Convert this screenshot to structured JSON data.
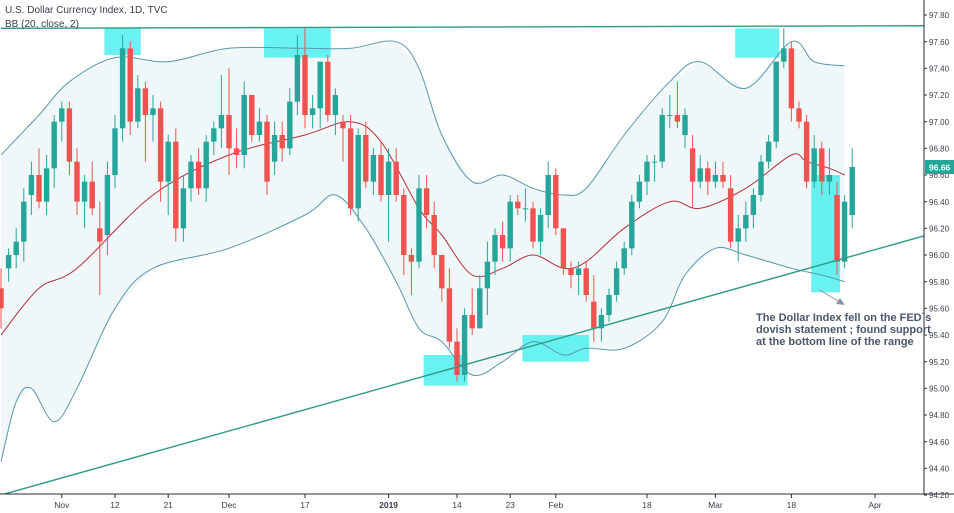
{
  "header": {
    "line1": "U.S. Dollar Currency Index, 1D, TVC",
    "line2": "BB (20, close, 2)"
  },
  "annotation": {
    "text": "The Dollar Index fell on the FED`s dovish statement ; found support at the bottom line of the range"
  },
  "colors": {
    "up": "#26a69a",
    "down": "#ef5350",
    "band": "#5b97ad",
    "basis": "#b2313b",
    "trendline": "#2e9a84",
    "highlight": "#4ef0ee",
    "price_label": "#26a69a"
  },
  "chart_data": {
    "type": "candlestick",
    "symbol": "U.S. Dollar Currency Index",
    "interval": "1D",
    "source": "TVC",
    "indicator": "BB (20, close, 2)",
    "last_price": "96.66",
    "ylim": [
      94.2,
      97.9
    ],
    "y_ticks": [
      "94.20",
      "94.40",
      "94.60",
      "94.80",
      "95.00",
      "95.20",
      "95.40",
      "95.60",
      "95.80",
      "96.00",
      "96.20",
      "96.40",
      "96.60",
      "96.80",
      "97.00",
      "97.20",
      "97.40",
      "97.60",
      "97.80"
    ],
    "x_ticks": [
      {
        "label": "Nov",
        "index": 8,
        "bold": false
      },
      {
        "label": "12",
        "index": 15,
        "bold": false
      },
      {
        "label": "21",
        "index": 22,
        "bold": false
      },
      {
        "label": "Dec",
        "index": 30,
        "bold": false
      },
      {
        "label": "17",
        "index": 40,
        "bold": false
      },
      {
        "label": "2019",
        "index": 51,
        "bold": true
      },
      {
        "label": "14",
        "index": 60,
        "bold": false
      },
      {
        "label": "23",
        "index": 67,
        "bold": false
      },
      {
        "label": "Feb",
        "index": 73,
        "bold": false
      },
      {
        "label": "18",
        "index": 85,
        "bold": false
      },
      {
        "label": "Mar",
        "index": 94,
        "bold": false
      },
      {
        "label": "18",
        "index": 104,
        "bold": false
      },
      {
        "label": "Apr",
        "index": 115,
        "bold": false
      }
    ],
    "candles": [
      {
        "o": 95.75,
        "h": 95.9,
        "l": 95.45,
        "c": 95.6
      },
      {
        "o": 95.9,
        "h": 96.05,
        "l": 95.8,
        "c": 96.0
      },
      {
        "o": 96.0,
        "h": 96.2,
        "l": 95.9,
        "c": 96.1
      },
      {
        "o": 96.1,
        "h": 96.5,
        "l": 95.95,
        "c": 96.4
      },
      {
        "o": 96.45,
        "h": 96.7,
        "l": 96.3,
        "c": 96.6
      },
      {
        "o": 96.6,
        "h": 96.8,
        "l": 96.35,
        "c": 96.4
      },
      {
        "o": 96.4,
        "h": 96.75,
        "l": 96.3,
        "c": 96.65
      },
      {
        "o": 96.65,
        "h": 97.05,
        "l": 96.5,
        "c": 97.0
      },
      {
        "o": 97.0,
        "h": 97.15,
        "l": 96.85,
        "c": 97.1
      },
      {
        "o": 97.1,
        "h": 97.15,
        "l": 96.6,
        "c": 96.7
      },
      {
        "o": 96.7,
        "h": 96.8,
        "l": 96.3,
        "c": 96.4
      },
      {
        "o": 96.4,
        "h": 96.6,
        "l": 96.2,
        "c": 96.55
      },
      {
        "o": 96.55,
        "h": 96.7,
        "l": 96.3,
        "c": 96.35
      },
      {
        "o": 96.2,
        "h": 96.4,
        "l": 95.7,
        "c": 96.1
      },
      {
        "o": 96.15,
        "h": 96.7,
        "l": 96.0,
        "c": 96.6
      },
      {
        "o": 96.6,
        "h": 97.05,
        "l": 96.5,
        "c": 96.95
      },
      {
        "o": 96.95,
        "h": 97.65,
        "l": 96.85,
        "c": 97.55
      },
      {
        "o": 97.55,
        "h": 97.6,
        "l": 96.9,
        "c": 97.0
      },
      {
        "o": 97.0,
        "h": 97.35,
        "l": 96.95,
        "c": 97.25
      },
      {
        "o": 97.25,
        "h": 97.3,
        "l": 96.7,
        "c": 97.05
      },
      {
        "o": 97.05,
        "h": 97.2,
        "l": 96.85,
        "c": 97.1
      },
      {
        "o": 97.1,
        "h": 97.15,
        "l": 96.4,
        "c": 96.55
      },
      {
        "o": 96.55,
        "h": 96.9,
        "l": 96.3,
        "c": 96.85
      },
      {
        "o": 96.85,
        "h": 96.95,
        "l": 96.1,
        "c": 96.2
      },
      {
        "o": 96.2,
        "h": 96.6,
        "l": 96.1,
        "c": 96.5
      },
      {
        "o": 96.5,
        "h": 96.75,
        "l": 96.4,
        "c": 96.7
      },
      {
        "o": 96.7,
        "h": 96.8,
        "l": 96.45,
        "c": 96.5
      },
      {
        "o": 96.5,
        "h": 96.9,
        "l": 96.4,
        "c": 96.85
      },
      {
        "o": 96.85,
        "h": 97.0,
        "l": 96.75,
        "c": 96.95
      },
      {
        "o": 96.95,
        "h": 97.35,
        "l": 96.8,
        "c": 97.05
      },
      {
        "o": 97.05,
        "h": 97.4,
        "l": 96.6,
        "c": 96.8
      },
      {
        "o": 96.8,
        "h": 96.95,
        "l": 96.65,
        "c": 96.75
      },
      {
        "o": 96.75,
        "h": 97.3,
        "l": 96.65,
        "c": 97.2
      },
      {
        "o": 97.2,
        "h": 97.2,
        "l": 96.85,
        "c": 96.9
      },
      {
        "o": 96.9,
        "h": 97.1,
        "l": 96.85,
        "c": 97.0
      },
      {
        "o": 97.0,
        "h": 97.05,
        "l": 96.45,
        "c": 96.55
      },
      {
        "o": 96.7,
        "h": 97.0,
        "l": 96.6,
        "c": 96.9
      },
      {
        "o": 96.9,
        "h": 97.0,
        "l": 96.7,
        "c": 96.8
      },
      {
        "o": 96.8,
        "h": 97.25,
        "l": 96.75,
        "c": 97.15
      },
      {
        "o": 97.15,
        "h": 97.65,
        "l": 97.05,
        "c": 97.5
      },
      {
        "o": 97.5,
        "h": 97.7,
        "l": 96.95,
        "c": 97.05
      },
      {
        "o": 97.05,
        "h": 97.2,
        "l": 96.95,
        "c": 97.1
      },
      {
        "o": 97.1,
        "h": 97.45,
        "l": 96.95,
        "c": 97.45
      },
      {
        "o": 97.45,
        "h": 97.5,
        "l": 97.0,
        "c": 97.05
      },
      {
        "o": 97.05,
        "h": 97.25,
        "l": 96.9,
        "c": 97.2
      },
      {
        "o": 97.0,
        "h": 97.05,
        "l": 96.7,
        "c": 96.95
      },
      {
        "o": 96.95,
        "h": 97.05,
        "l": 96.3,
        "c": 96.35
      },
      {
        "o": 96.35,
        "h": 96.95,
        "l": 96.25,
        "c": 96.9
      },
      {
        "o": 96.9,
        "h": 97.0,
        "l": 96.5,
        "c": 96.55
      },
      {
        "o": 96.55,
        "h": 96.8,
        "l": 96.45,
        "c": 96.75
      },
      {
        "o": 96.75,
        "h": 96.85,
        "l": 96.4,
        "c": 96.45
      },
      {
        "o": 96.45,
        "h": 96.8,
        "l": 96.1,
        "c": 96.7
      },
      {
        "o": 96.7,
        "h": 96.8,
        "l": 96.4,
        "c": 96.45
      },
      {
        "o": 96.45,
        "h": 96.5,
        "l": 95.85,
        "c": 96.0
      },
      {
        "o": 96.0,
        "h": 96.05,
        "l": 95.7,
        "c": 95.95
      },
      {
        "o": 95.95,
        "h": 96.6,
        "l": 95.9,
        "c": 96.5
      },
      {
        "o": 96.5,
        "h": 96.6,
        "l": 96.2,
        "c": 96.3
      },
      {
        "o": 96.3,
        "h": 96.4,
        "l": 95.9,
        "c": 96.0
      },
      {
        "o": 96.0,
        "h": 96.0,
        "l": 95.65,
        "c": 95.75
      },
      {
        "o": 95.75,
        "h": 95.9,
        "l": 95.3,
        "c": 95.35
      },
      {
        "o": 95.35,
        "h": 95.45,
        "l": 95.05,
        "c": 95.1
      },
      {
        "o": 95.1,
        "h": 95.6,
        "l": 95.05,
        "c": 95.55
      },
      {
        "o": 95.55,
        "h": 95.75,
        "l": 95.4,
        "c": 95.45
      },
      {
        "o": 95.45,
        "h": 95.85,
        "l": 95.45,
        "c": 95.75
      },
      {
        "o": 95.75,
        "h": 96.1,
        "l": 95.55,
        "c": 95.95
      },
      {
        "o": 95.95,
        "h": 96.2,
        "l": 95.85,
        "c": 96.15
      },
      {
        "o": 96.15,
        "h": 96.25,
        "l": 95.95,
        "c": 96.05
      },
      {
        "o": 96.05,
        "h": 96.45,
        "l": 95.95,
        "c": 96.4
      },
      {
        "o": 96.4,
        "h": 96.45,
        "l": 96.3,
        "c": 96.35
      },
      {
        "o": 96.35,
        "h": 96.5,
        "l": 96.25,
        "c": 96.35
      },
      {
        "o": 96.35,
        "h": 96.4,
        "l": 96.05,
        "c": 96.1
      },
      {
        "o": 96.1,
        "h": 96.35,
        "l": 96.0,
        "c": 96.3
      },
      {
        "o": 96.3,
        "h": 96.7,
        "l": 96.2,
        "c": 96.6
      },
      {
        "o": 96.6,
        "h": 96.65,
        "l": 96.15,
        "c": 96.2
      },
      {
        "o": 96.2,
        "h": 96.2,
        "l": 95.85,
        "c": 95.9
      },
      {
        "o": 95.9,
        "h": 95.95,
        "l": 95.75,
        "c": 95.85
      },
      {
        "o": 95.85,
        "h": 95.95,
        "l": 95.7,
        "c": 95.9
      },
      {
        "o": 95.9,
        "h": 95.95,
        "l": 95.65,
        "c": 95.7
      },
      {
        "o": 95.65,
        "h": 95.85,
        "l": 95.35,
        "c": 95.45
      },
      {
        "o": 95.45,
        "h": 95.6,
        "l": 95.35,
        "c": 95.55
      },
      {
        "o": 95.55,
        "h": 95.75,
        "l": 95.5,
        "c": 95.7
      },
      {
        "o": 95.7,
        "h": 95.95,
        "l": 95.65,
        "c": 95.9
      },
      {
        "o": 95.9,
        "h": 96.1,
        "l": 95.85,
        "c": 96.05
      },
      {
        "o": 96.05,
        "h": 96.45,
        "l": 96.0,
        "c": 96.4
      },
      {
        "o": 96.4,
        "h": 96.6,
        "l": 96.35,
        "c": 96.55
      },
      {
        "o": 96.55,
        "h": 96.75,
        "l": 96.45,
        "c": 96.7
      },
      {
        "o": 96.7,
        "h": 96.75,
        "l": 96.55,
        "c": 96.7
      },
      {
        "o": 96.7,
        "h": 97.1,
        "l": 96.65,
        "c": 97.05
      },
      {
        "o": 97.05,
        "h": 97.2,
        "l": 96.95,
        "c": 97.05
      },
      {
        "o": 97.05,
        "h": 97.3,
        "l": 96.95,
        "c": 97.0
      },
      {
        "o": 96.9,
        "h": 97.1,
        "l": 96.8,
        "c": 97.05
      },
      {
        "o": 96.8,
        "h": 96.9,
        "l": 96.35,
        "c": 96.55
      },
      {
        "o": 96.55,
        "h": 96.75,
        "l": 96.5,
        "c": 96.65
      },
      {
        "o": 96.65,
        "h": 96.7,
        "l": 96.45,
        "c": 96.55
      },
      {
        "o": 96.55,
        "h": 96.7,
        "l": 96.5,
        "c": 96.6
      },
      {
        "o": 96.6,
        "h": 96.7,
        "l": 96.5,
        "c": 96.55
      },
      {
        "o": 96.5,
        "h": 96.6,
        "l": 96.05,
        "c": 96.1
      },
      {
        "o": 96.1,
        "h": 96.3,
        "l": 95.95,
        "c": 96.2
      },
      {
        "o": 96.2,
        "h": 96.4,
        "l": 96.1,
        "c": 96.3
      },
      {
        "o": 96.3,
        "h": 96.5,
        "l": 96.2,
        "c": 96.45
      },
      {
        "o": 96.45,
        "h": 96.75,
        "l": 96.4,
        "c": 96.7
      },
      {
        "o": 96.7,
        "h": 96.9,
        "l": 96.65,
        "c": 96.85
      },
      {
        "o": 96.85,
        "h": 97.45,
        "l": 96.8,
        "c": 97.45
      },
      {
        "o": 97.45,
        "h": 97.7,
        "l": 97.4,
        "c": 97.55
      },
      {
        "o": 97.55,
        "h": 97.6,
        "l": 97.0,
        "c": 97.1
      },
      {
        "o": 97.1,
        "h": 97.15,
        "l": 96.95,
        "c": 97.0
      },
      {
        "o": 97.0,
        "h": 97.05,
        "l": 96.5,
        "c": 96.55
      },
      {
        "o": 96.55,
        "h": 96.9,
        "l": 96.5,
        "c": 96.8
      },
      {
        "o": 96.8,
        "h": 96.85,
        "l": 96.45,
        "c": 96.55
      },
      {
        "o": 96.55,
        "h": 96.8,
        "l": 96.45,
        "c": 96.6
      },
      {
        "o": 96.45,
        "h": 96.55,
        "l": 95.85,
        "c": 95.95
      },
      {
        "o": 95.95,
        "h": 96.45,
        "l": 95.9,
        "c": 96.4
      },
      {
        "o": 96.3,
        "h": 96.8,
        "l": 96.2,
        "c": 96.66
      }
    ],
    "bb_basis": [
      [
        0,
        95.4
      ],
      [
        5,
        95.75
      ],
      [
        10,
        95.9
      ],
      [
        20,
        96.45
      ],
      [
        30,
        96.75
      ],
      [
        40,
        96.9
      ],
      [
        46,
        97.0
      ],
      [
        50,
        96.85
      ],
      [
        55,
        96.35
      ],
      [
        58,
        96.15
      ],
      [
        62,
        95.85
      ],
      [
        66,
        95.9
      ],
      [
        70,
        96.0
      ],
      [
        74,
        95.9
      ],
      [
        77,
        95.95
      ],
      [
        82,
        96.2
      ],
      [
        88,
        96.4
      ],
      [
        92,
        96.35
      ],
      [
        98,
        96.5
      ],
      [
        104,
        96.75
      ],
      [
        106,
        96.7
      ],
      [
        109,
        96.65
      ],
      [
        111,
        96.6
      ]
    ],
    "bb_upper": [
      [
        0,
        96.75
      ],
      [
        5,
        97.05
      ],
      [
        9,
        97.3
      ],
      [
        15,
        97.48
      ],
      [
        22,
        97.45
      ],
      [
        30,
        97.55
      ],
      [
        40,
        97.55
      ],
      [
        46,
        97.55
      ],
      [
        52,
        97.6
      ],
      [
        55,
        97.4
      ],
      [
        58,
        96.9
      ],
      [
        62,
        96.55
      ],
      [
        66,
        96.6
      ],
      [
        70,
        96.5
      ],
      [
        74,
        96.45
      ],
      [
        77,
        96.5
      ],
      [
        82,
        96.9
      ],
      [
        88,
        97.3
      ],
      [
        92,
        97.45
      ],
      [
        98,
        97.25
      ],
      [
        104,
        97.6
      ],
      [
        107,
        97.45
      ],
      [
        111,
        97.42
      ]
    ],
    "bb_lower": [
      [
        0,
        94.45
      ],
      [
        2,
        94.9
      ],
      [
        4,
        95.0
      ],
      [
        7,
        94.75
      ],
      [
        10,
        95.0
      ],
      [
        15,
        95.6
      ],
      [
        20,
        95.9
      ],
      [
        30,
        96.05
      ],
      [
        40,
        96.3
      ],
      [
        44,
        96.45
      ],
      [
        48,
        96.2
      ],
      [
        52,
        95.8
      ],
      [
        55,
        95.45
      ],
      [
        58,
        95.35
      ],
      [
        62,
        95.1
      ],
      [
        66,
        95.2
      ],
      [
        70,
        95.35
      ],
      [
        74,
        95.25
      ],
      [
        77,
        95.3
      ],
      [
        82,
        95.3
      ],
      [
        87,
        95.5
      ],
      [
        90,
        95.85
      ],
      [
        94,
        96.05
      ],
      [
        98,
        96.0
      ],
      [
        104,
        95.9
      ],
      [
        108,
        95.85
      ],
      [
        111,
        95.8
      ]
    ],
    "resistance_line": [
      [
        0,
        97.7
      ],
      [
        125,
        97.72
      ]
    ],
    "support_line": [
      [
        0,
        94.2
      ],
      [
        125,
        96.2
      ]
    ],
    "highlight_boxes": [
      {
        "i0": 14,
        "i1": 18,
        "p0": 97.5,
        "p1": 97.7
      },
      {
        "i0": 35,
        "i1": 43,
        "p0": 97.48,
        "p1": 97.7
      },
      {
        "i0": 56,
        "i1": 61,
        "p0": 95.02,
        "p1": 95.25
      },
      {
        "i0": 69,
        "i1": 77,
        "p0": 95.2,
        "p1": 95.4
      },
      {
        "i0": 97,
        "i1": 102,
        "p0": 97.48,
        "p1": 97.7
      },
      {
        "i0": 107,
        "i1": 110,
        "p0": 95.72,
        "p1": 96.6
      }
    ]
  }
}
